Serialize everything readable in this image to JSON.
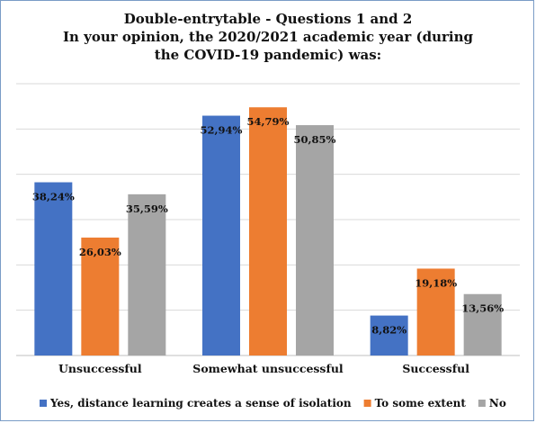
{
  "chart_data": {
    "type": "bar",
    "title_lines": [
      "Double-entrytable - Questions 1 and 2",
      "In your opinion, the 2020/2021 academic year (during",
      "the COVID-19 pandemic) was:"
    ],
    "categories": [
      "Unsuccessful",
      "Somewhat unsuccessful",
      "Successful"
    ],
    "series": [
      {
        "name": "Yes, distance learning creates a sense of isolation",
        "color": "#4472c4",
        "values": [
          38.24,
          52.94,
          8.82
        ],
        "labels": [
          "38,24%",
          "52,94%",
          "8,82%"
        ]
      },
      {
        "name": "To some extent",
        "color": "#ed7d31",
        "values": [
          26.03,
          54.79,
          19.18
        ],
        "labels": [
          "26,03%",
          "54,79%",
          "19,18%"
        ]
      },
      {
        "name": "No",
        "color": "#a5a5a5",
        "values": [
          35.59,
          50.85,
          13.56
        ],
        "labels": [
          "35,59%",
          "50,85%",
          "13,56%"
        ]
      }
    ],
    "ylim": [
      0,
      60
    ],
    "grid": true,
    "legend": "bottom"
  }
}
